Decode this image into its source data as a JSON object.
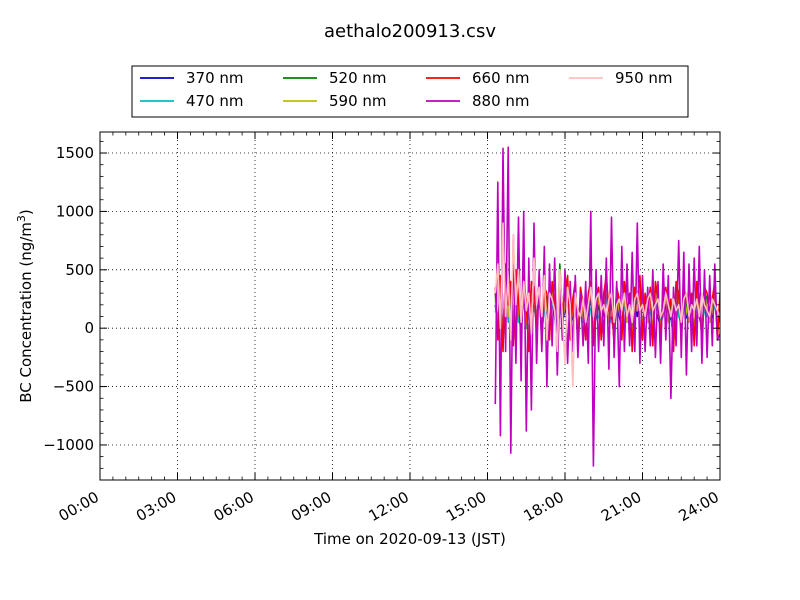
{
  "chart_data": {
    "type": "line",
    "title": "aethalo200913.csv",
    "xlabel": "Time on 2020-09-13 (JST)",
    "ylabel_main": "BC Concentration (ng/m",
    "ylabel_sup": "3",
    "ylabel_tail": ")",
    "x_unit": "hours",
    "xlim": [
      0,
      24
    ],
    "ylim": [
      -1300,
      1680
    ],
    "x_ticks": [
      0,
      3,
      6,
      9,
      12,
      15,
      18,
      21,
      24
    ],
    "x_tick_labels": [
      "00:00",
      "03:00",
      "06:00",
      "09:00",
      "12:00",
      "15:00",
      "18:00",
      "21:00",
      "24:00"
    ],
    "y_ticks": [
      -1000,
      -500,
      0,
      500,
      1000,
      1500
    ],
    "y_tick_labels": [
      "−1000",
      "−500",
      "0",
      "500",
      "1000",
      "1500"
    ],
    "grid": true,
    "legend_position": "top",
    "x": [
      15.3,
      15.4,
      15.5,
      15.6,
      15.7,
      15.8,
      15.9,
      16.0,
      16.1,
      16.2,
      16.3,
      16.4,
      16.5,
      16.6,
      16.7,
      16.8,
      16.9,
      17.0,
      17.1,
      17.2,
      17.3,
      17.4,
      17.5,
      17.6,
      17.7,
      17.8,
      17.9,
      18.0,
      18.1,
      18.2,
      18.3,
      18.4,
      18.5,
      18.6,
      18.7,
      18.8,
      18.9,
      19.0,
      19.1,
      19.2,
      19.3,
      19.4,
      19.5,
      19.6,
      19.7,
      19.8,
      19.9,
      20.0,
      20.1,
      20.2,
      20.3,
      20.4,
      20.5,
      20.6,
      20.7,
      20.8,
      20.9,
      21.0,
      21.1,
      21.2,
      21.3,
      21.4,
      21.5,
      21.6,
      21.7,
      21.8,
      21.9,
      22.0,
      22.1,
      22.2,
      22.3,
      22.4,
      22.5,
      22.6,
      22.7,
      22.8,
      22.9,
      23.0,
      23.1,
      23.2,
      23.3,
      23.4,
      23.5,
      23.6,
      23.7,
      23.8,
      23.9,
      24.0
    ],
    "series": [
      {
        "name": "370 nm",
        "color": "#0000cc",
        "values": [
          200,
          50,
          300,
          -100,
          400,
          100,
          250,
          -50,
          350,
          150,
          0,
          300,
          100,
          -80,
          250,
          200,
          50,
          300,
          -50,
          200,
          150,
          0,
          250,
          100,
          -100,
          200,
          50,
          150,
          300,
          0,
          100,
          250,
          -50,
          200,
          100,
          0,
          150,
          250,
          -50,
          100,
          200,
          0,
          150,
          300,
          50,
          100,
          -50,
          200,
          100,
          0,
          250,
          50,
          150,
          -100,
          200,
          100,
          300,
          0,
          150,
          50,
          200,
          -50,
          250,
          100,
          0,
          150,
          200,
          50,
          100,
          -80,
          250,
          150,
          0,
          200,
          100,
          50,
          150,
          -50,
          250,
          100,
          0,
          200,
          150,
          50,
          100,
          250,
          0,
          150
        ]
      },
      {
        "name": "470 nm",
        "color": "#00bfbf",
        "values": [
          150,
          100,
          250,
          0,
          350,
          50,
          200,
          100,
          300,
          50,
          150,
          250,
          0,
          100,
          200,
          150,
          100,
          250,
          0,
          150,
          200,
          50,
          200,
          150,
          0,
          150,
          100,
          200,
          250,
          50,
          150,
          200,
          0,
          150,
          50,
          100,
          200,
          150,
          0,
          150,
          100,
          50,
          200,
          250,
          100,
          50,
          0,
          150,
          200,
          50,
          200,
          100,
          100,
          0,
          150,
          150,
          250,
          50,
          100,
          100,
          150,
          0,
          200,
          150,
          50,
          100,
          150,
          100,
          150,
          0,
          200,
          100,
          50,
          150,
          150,
          100,
          100,
          0,
          200,
          150,
          50,
          150,
          100,
          100,
          150,
          200,
          50,
          100
        ]
      },
      {
        "name": "520 nm",
        "color": "#008000",
        "values": [
          300,
          -50,
          400,
          -150,
          500,
          150,
          350,
          -100,
          450,
          200,
          -50,
          400,
          150,
          -150,
          350,
          300,
          0,
          400,
          -100,
          300,
          250,
          -50,
          350,
          200,
          -150,
          550,
          100,
          250,
          400,
          -50,
          200,
          350,
          -100,
          300,
          150,
          -50,
          250,
          350,
          -100,
          200,
          300,
          -50,
          250,
          400,
          100,
          200,
          -100,
          300,
          200,
          -50,
          350,
          100,
          250,
          -150,
          300,
          200,
          400,
          -50,
          250,
          100,
          300,
          -100,
          350,
          200,
          -50,
          250,
          300,
          100,
          200,
          -150,
          350,
          250,
          -50,
          300,
          200,
          100,
          250,
          -100,
          350,
          200,
          -50,
          300,
          250,
          100,
          200,
          350,
          -50,
          250
        ]
      },
      {
        "name": "590 nm",
        "color": "#bfbf00",
        "values": [
          250,
          0,
          350,
          -100,
          450,
          100,
          300,
          -50,
          400,
          150,
          0,
          350,
          100,
          -100,
          300,
          250,
          50,
          350,
          -50,
          250,
          200,
          0,
          300,
          150,
          -100,
          500,
          50,
          200,
          350,
          0,
          150,
          300,
          -50,
          250,
          100,
          0,
          200,
          300,
          -50,
          150,
          250,
          0,
          200,
          350,
          50,
          150,
          -50,
          250,
          150,
          0,
          300,
          50,
          200,
          -100,
          250,
          150,
          350,
          0,
          200,
          50,
          250,
          -50,
          300,
          150,
          0,
          200,
          250,
          50,
          150,
          -100,
          300,
          200,
          0,
          250,
          150,
          50,
          200,
          -50,
          300,
          150,
          0,
          250,
          200,
          50,
          150,
          300,
          0,
          200
        ]
      },
      {
        "name": "660 nm",
        "color": "#ff0000",
        "values": [
          350,
          -100,
          450,
          -200,
          550,
          200,
          400,
          -150,
          500,
          250,
          -100,
          450,
          200,
          -200,
          400,
          350,
          -50,
          450,
          -150,
          350,
          300,
          -100,
          400,
          250,
          -200,
          450,
          150,
          300,
          450,
          -100,
          250,
          400,
          -150,
          350,
          200,
          -100,
          300,
          400,
          -150,
          250,
          350,
          -100,
          300,
          450,
          150,
          250,
          -150,
          350,
          250,
          -100,
          400,
          150,
          300,
          -200,
          350,
          250,
          450,
          -100,
          300,
          150,
          350,
          -150,
          400,
          250,
          -100,
          300,
          350,
          150,
          250,
          -200,
          400,
          300,
          -100,
          350,
          250,
          150,
          300,
          -150,
          400,
          250,
          -100,
          350,
          300,
          150,
          250,
          400,
          -100,
          300
        ]
      },
      {
        "name": "880 nm",
        "color": "#bf00bf",
        "values": [
          -650,
          1250,
          -920,
          1540,
          -200,
          1550,
          -1070,
          800,
          -300,
          950,
          -450,
          1000,
          -880,
          600,
          -700,
          900,
          -300,
          500,
          -200,
          700,
          -500,
          550,
          -150,
          600,
          -400,
          350,
          -100,
          500,
          -300,
          400,
          -200,
          450,
          -250,
          300,
          -150,
          400,
          -300,
          1000,
          -1180,
          500,
          -200,
          450,
          -150,
          600,
          -350,
          950,
          -250,
          400,
          -500,
          700,
          -200,
          550,
          -150,
          650,
          -200,
          900,
          -300,
          450,
          -200,
          350,
          -150,
          500,
          -250,
          400,
          -300,
          550,
          -100,
          450,
          -600,
          350,
          -150,
          750,
          -250,
          650,
          -400,
          550,
          -200,
          600,
          -150,
          700,
          -300,
          500,
          -250,
          450,
          -150,
          550,
          -100,
          -50
        ]
      },
      {
        "name": "950 nm",
        "color": "#ffbfbf",
        "values": [
          300,
          550,
          0,
          900,
          100,
          450,
          -100,
          800,
          200,
          500,
          50,
          400,
          150,
          300,
          -50,
          600,
          200,
          350,
          100,
          450,
          -100,
          300,
          250,
          150,
          -200,
          500,
          100,
          -300,
          350,
          200,
          -500,
          300,
          150,
          100,
          250,
          50,
          200,
          350,
          100,
          250,
          300,
          150,
          200,
          100,
          250,
          300,
          50,
          200,
          250,
          150,
          300,
          100,
          200,
          50,
          250,
          300,
          150,
          200,
          100,
          250,
          300,
          150,
          200,
          250,
          100,
          150,
          300,
          200,
          100,
          250,
          150,
          200,
          50,
          250,
          300,
          100,
          200,
          150,
          250,
          100,
          300,
          200,
          150,
          100,
          250,
          200,
          150,
          100
        ]
      }
    ]
  }
}
